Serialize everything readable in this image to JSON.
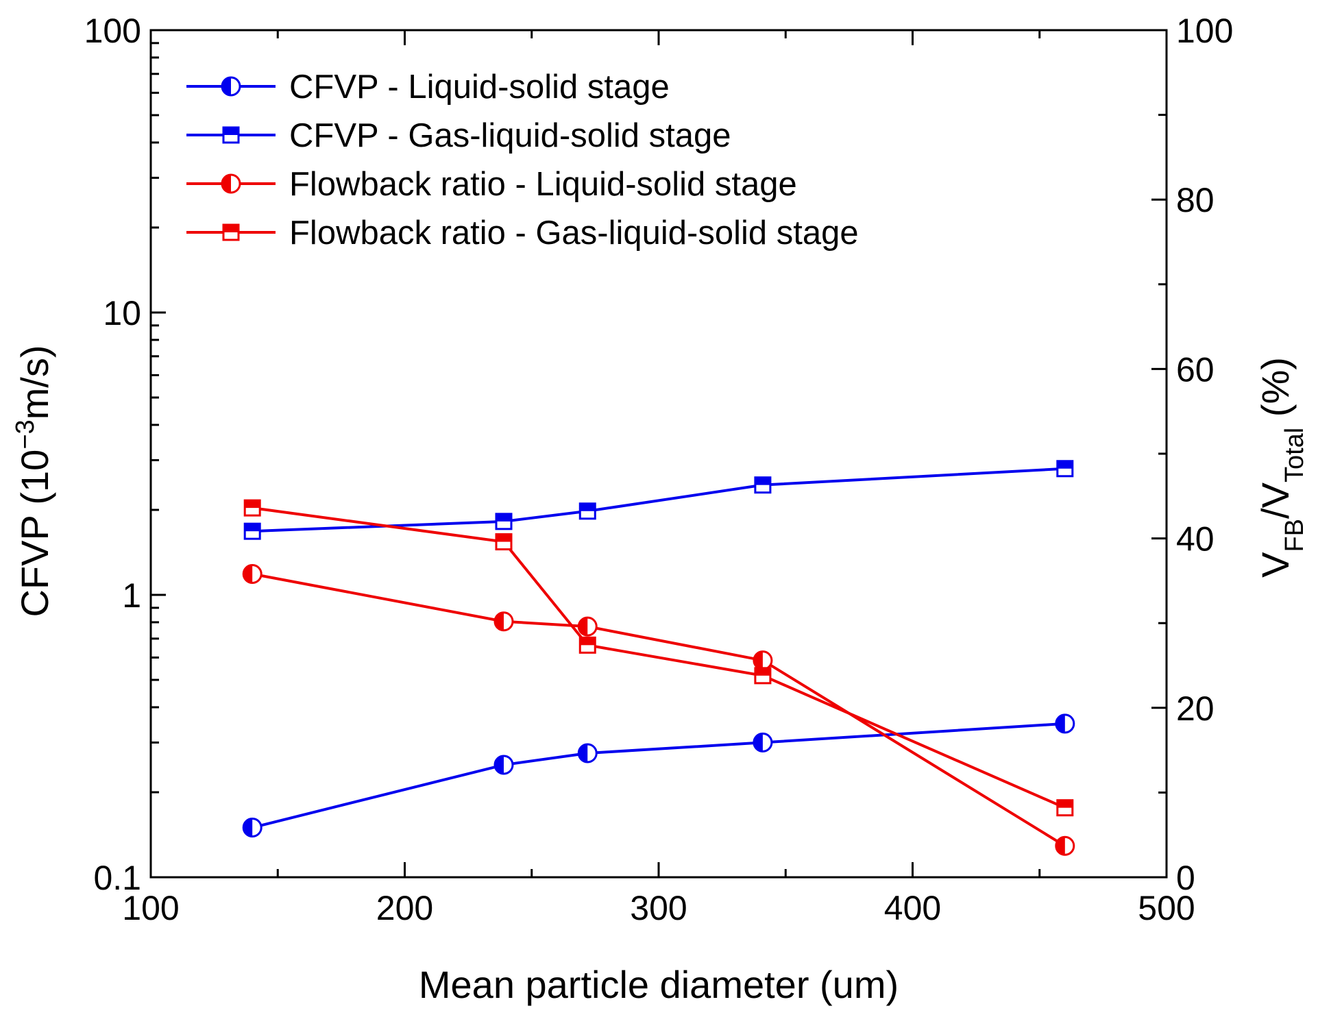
{
  "chart_data": {
    "type": "line",
    "xlabel": "Mean particle diameter (um)",
    "ylabel_left": {
      "base": "CFVP (10",
      "sup": "−3",
      "rest": "m/s)"
    },
    "ylabel_right": {
      "v1": "V",
      "sub1": "FB",
      "slash": "/V",
      "sub2": "Total",
      "rest": " (%)"
    },
    "xlim": [
      100,
      500
    ],
    "ylim_left": [
      0.1,
      100
    ],
    "ylim_left_scale": "log",
    "ylim_right": [
      0,
      100
    ],
    "x_ticks": [
      100,
      200,
      300,
      400,
      500
    ],
    "x_tick_labels": [
      "100",
      "200",
      "300",
      "400",
      "500"
    ],
    "y_left_ticks": [
      0.1,
      1,
      10,
      100
    ],
    "y_left_tick_labels": [
      "0.1",
      "1",
      "10",
      "100"
    ],
    "y_right_ticks": [
      0,
      20,
      40,
      60,
      80,
      100
    ],
    "y_right_tick_labels": [
      "0",
      "20",
      "40",
      "60",
      "80",
      "100"
    ],
    "legend_position": "top-left",
    "series": [
      {
        "name": "CFVP - Liquid-solid stage",
        "axis": "left",
        "color": "#0000ee",
        "marker": "half-circle",
        "x": [
          140,
          239,
          272,
          341,
          460
        ],
        "values": [
          0.15,
          0.25,
          0.275,
          0.3,
          0.35
        ]
      },
      {
        "name": "CFVP - Gas-liquid-solid stage",
        "axis": "left",
        "color": "#0000ee",
        "marker": "half-square",
        "x": [
          140,
          239,
          272,
          341,
          460
        ],
        "values": [
          1.68,
          1.82,
          1.98,
          2.45,
          2.8
        ]
      },
      {
        "name": "Flowback ratio - Liquid-solid stage",
        "axis": "right",
        "color": "#ee0000",
        "marker": "half-circle",
        "x": [
          140,
          239,
          272,
          341,
          460
        ],
        "values": [
          35.8,
          30.2,
          29.6,
          25.6,
          3.7
        ]
      },
      {
        "name": "Flowback ratio - Gas-liquid-solid stage",
        "axis": "right",
        "color": "#ee0000",
        "marker": "half-square",
        "x": [
          140,
          239,
          272,
          341,
          460
        ],
        "values": [
          43.6,
          39.6,
          27.4,
          23.8,
          8.2
        ]
      }
    ]
  }
}
